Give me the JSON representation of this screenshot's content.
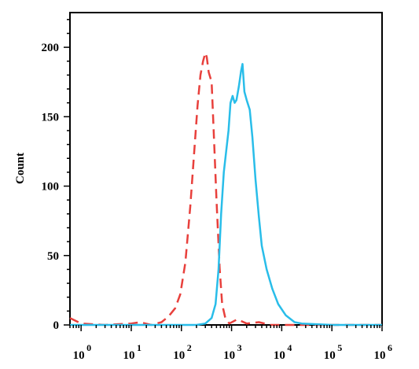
{
  "chart_data": {
    "type": "line",
    "title": "",
    "xlabel": "",
    "ylabel": "Count",
    "x_scale": "log",
    "xlim": [
      0.6,
      1000000
    ],
    "ylim": [
      0,
      225
    ],
    "y_ticks": [
      0,
      50,
      100,
      150,
      200
    ],
    "x_ticks": [
      {
        "value": 1,
        "base": "10",
        "exp": "0"
      },
      {
        "value": 10,
        "base": "10",
        "exp": "1"
      },
      {
        "value": 100,
        "base": "10",
        "exp": "2"
      },
      {
        "value": 1000,
        "base": "10",
        "exp": "3"
      },
      {
        "value": 10000,
        "base": "10",
        "exp": "4"
      },
      {
        "value": 100000,
        "base": "10",
        "exp": "5"
      },
      {
        "value": 1000000,
        "base": "10",
        "exp": "6"
      }
    ],
    "grid": false,
    "series": [
      {
        "color": "#e8403c",
        "style": "dashed",
        "points": [
          [
            0.6,
            5
          ],
          [
            1,
            1
          ],
          [
            3,
            0
          ],
          [
            10,
            1
          ],
          [
            15,
            2
          ],
          [
            25,
            0
          ],
          [
            40,
            2
          ],
          [
            55,
            6
          ],
          [
            75,
            12
          ],
          [
            95,
            22
          ],
          [
            120,
            45
          ],
          [
            150,
            85
          ],
          [
            180,
            125
          ],
          [
            210,
            158
          ],
          [
            240,
            180
          ],
          [
            270,
            190
          ],
          [
            300,
            196
          ],
          [
            320,
            193
          ],
          [
            350,
            182
          ],
          [
            400,
            175
          ],
          [
            440,
            140
          ],
          [
            500,
            90
          ],
          [
            580,
            40
          ],
          [
            650,
            15
          ],
          [
            750,
            5
          ],
          [
            900,
            1
          ],
          [
            1300,
            4
          ],
          [
            2000,
            1
          ],
          [
            3500,
            2
          ],
          [
            6000,
            0
          ],
          [
            1000000,
            0
          ]
        ]
      },
      {
        "color": "#29bde9",
        "style": "solid",
        "points": [
          [
            0.6,
            0
          ],
          [
            20,
            0
          ],
          [
            200,
            0
          ],
          [
            300,
            1
          ],
          [
            400,
            5
          ],
          [
            480,
            15
          ],
          [
            550,
            40
          ],
          [
            620,
            80
          ],
          [
            700,
            110
          ],
          [
            780,
            125
          ],
          [
            870,
            140
          ],
          [
            950,
            160
          ],
          [
            1050,
            165
          ],
          [
            1150,
            160
          ],
          [
            1250,
            162
          ],
          [
            1400,
            172
          ],
          [
            1550,
            183
          ],
          [
            1650,
            188
          ],
          [
            1800,
            168
          ],
          [
            2000,
            162
          ],
          [
            2300,
            155
          ],
          [
            2600,
            135
          ],
          [
            3000,
            105
          ],
          [
            3500,
            78
          ],
          [
            4000,
            57
          ],
          [
            5000,
            40
          ],
          [
            6500,
            26
          ],
          [
            8500,
            15
          ],
          [
            12000,
            7
          ],
          [
            18000,
            2
          ],
          [
            25000,
            1
          ],
          [
            100000,
            0
          ],
          [
            1000000,
            0
          ]
        ]
      }
    ]
  }
}
